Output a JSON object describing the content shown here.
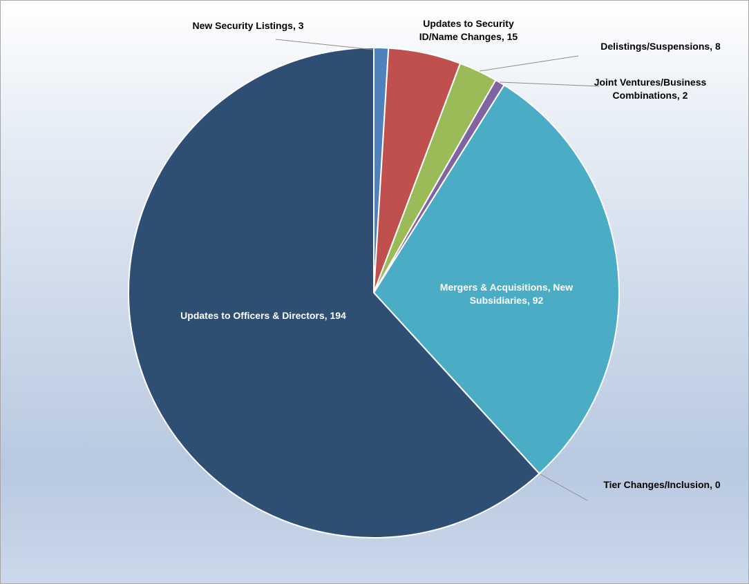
{
  "chart_data": {
    "type": "pie",
    "title": "",
    "start_angle_deg": 0,
    "direction": "clockwise",
    "slices": [
      {
        "label": "New Security Listings",
        "value": 3,
        "color": "#4f81bd",
        "label_text": [
          "New Security Listings, 3"
        ],
        "label_style": "outside"
      },
      {
        "label": "Updates to Security ID/Name Changes",
        "value": 15,
        "color": "#c0504d",
        "label_text": [
          "Updates to Security",
          "ID/Name Changes, 15"
        ],
        "label_style": "outside"
      },
      {
        "label": "Delistings/Suspensions",
        "value": 8,
        "color": "#9bbb59",
        "label_text": [
          "Delistings/Suspensions, 8"
        ],
        "label_style": "outside"
      },
      {
        "label": "Joint Ventures/Business Combinations",
        "value": 2,
        "color": "#8064a2",
        "label_text": [
          "Joint Ventures/Business",
          "Combinations, 2"
        ],
        "label_style": "outside"
      },
      {
        "label": "Mergers & Acquisitions, New Subsidiaries",
        "value": 92,
        "color": "#4bacc6",
        "label_text": [
          "Mergers & Acquisitions, New",
          "Subsidiaries, 92"
        ],
        "label_style": "inside"
      },
      {
        "label": "Tier Changes/Inclusion",
        "value": 0,
        "color": "#f79646",
        "label_text": [
          "Tier Changes/Inclusion, 0"
        ],
        "label_style": "outside"
      },
      {
        "label": "Updates to Officers & Directors",
        "value": 194,
        "color": "#2e4f73",
        "label_text": [
          "Updates to Officers & Directors, 194"
        ],
        "label_style": "inside"
      }
    ]
  }
}
